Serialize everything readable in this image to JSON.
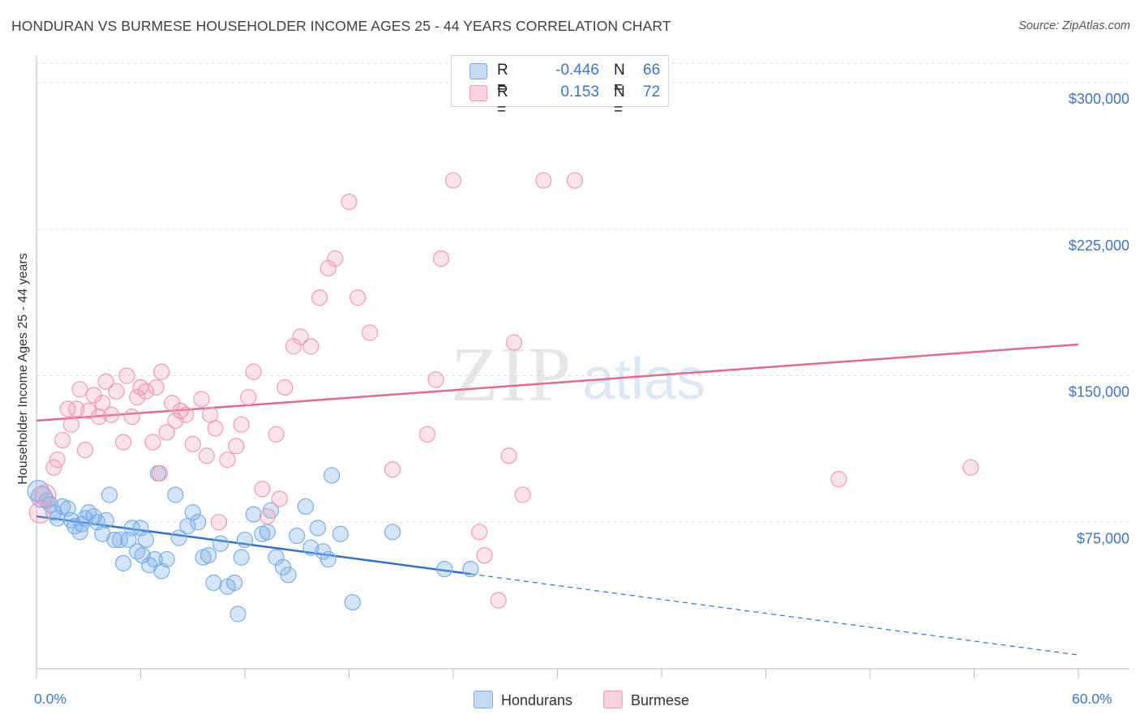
{
  "title": "HONDURAN VS BURMESE HOUSEHOLDER INCOME AGES 25 - 44 YEARS CORRELATION CHART",
  "source": "Source: ZipAtlas.com",
  "watermark": {
    "zip": "ZIP",
    "atlas": "atlas"
  },
  "legend": {
    "rows": [
      {
        "r_label": "R =",
        "r_value": "-0.446",
        "n_label": "N =",
        "n_value": "66",
        "color": "#7aaee8"
      },
      {
        "r_label": "R =",
        "r_value": "0.153",
        "n_label": "N =",
        "n_value": "72",
        "color": "#f29ab5"
      }
    ]
  },
  "bottom_legend": {
    "hondurans": "Hondurans",
    "burmese": "Burmese"
  },
  "x_axis": {
    "min_label": "0.0%",
    "max_label": "60.0%"
  },
  "chart_data": {
    "type": "scatter",
    "title": "HONDURAN VS BURMESE HOUSEHOLDER INCOME AGES 25 - 44 YEARS CORRELATION CHART",
    "xlabel": "",
    "ylabel": "Householder Income Ages 25 - 44 years",
    "xlim": [
      0,
      60
    ],
    "ylim": [
      0,
      310000
    ],
    "y_ticks": [
      {
        "value": 75000,
        "label": "$75,000"
      },
      {
        "value": 150000,
        "label": "$150,000"
      },
      {
        "value": 225000,
        "label": "$225,000"
      },
      {
        "value": 300000,
        "label": "$300,000"
      }
    ],
    "grid": true,
    "series": [
      {
        "name": "Hondurans",
        "color": "#7aaee8",
        "line_color": "#2e72d0",
        "trend": {
          "x0": 0,
          "y0": 78000,
          "x1": 25,
          "y1": 48500,
          "dashed_to_x": 60,
          "dashed_to_y": 7000
        },
        "points": [
          [
            0.1,
            91000
          ],
          [
            0.3,
            88000
          ],
          [
            0.6,
            86000
          ],
          [
            0.8,
            84000
          ],
          [
            1.0,
            80000
          ],
          [
            1.2,
            77000
          ],
          [
            1.5,
            83000
          ],
          [
            2.0,
            76000
          ],
          [
            2.2,
            73000
          ],
          [
            2.5,
            70000
          ],
          [
            2.8,
            77000
          ],
          [
            3.0,
            80000
          ],
          [
            3.3,
            78000
          ],
          [
            3.5,
            75000
          ],
          [
            3.8,
            69000
          ],
          [
            4.0,
            76000
          ],
          [
            4.2,
            89000
          ],
          [
            4.5,
            66000
          ],
          [
            4.8,
            66000
          ],
          [
            5.0,
            54000
          ],
          [
            5.3,
            66000
          ],
          [
            5.5,
            72000
          ],
          [
            5.8,
            60000
          ],
          [
            6.0,
            72000
          ],
          [
            6.3,
            66000
          ],
          [
            6.5,
            53000
          ],
          [
            6.8,
            56000
          ],
          [
            7.2,
            50000
          ],
          [
            7.5,
            56000
          ],
          [
            7.0,
            100000
          ],
          [
            8.0,
            89000
          ],
          [
            8.2,
            67000
          ],
          [
            8.7,
            73000
          ],
          [
            9.0,
            80000
          ],
          [
            9.3,
            75000
          ],
          [
            9.6,
            57000
          ],
          [
            9.9,
            58000
          ],
          [
            10.2,
            44000
          ],
          [
            10.6,
            64000
          ],
          [
            11.0,
            42000
          ],
          [
            11.4,
            44000
          ],
          [
            11.6,
            28000
          ],
          [
            11.8,
            57000
          ],
          [
            12.5,
            79000
          ],
          [
            13.0,
            69000
          ],
          [
            13.3,
            70000
          ],
          [
            13.5,
            81000
          ],
          [
            13.8,
            57000
          ],
          [
            14.2,
            52000
          ],
          [
            14.5,
            48000
          ],
          [
            15.0,
            68000
          ],
          [
            15.5,
            83000
          ],
          [
            15.8,
            62000
          ],
          [
            16.2,
            72000
          ],
          [
            16.5,
            60000
          ],
          [
            16.8,
            56000
          ],
          [
            17.0,
            99000
          ],
          [
            17.5,
            69000
          ],
          [
            18.2,
            34000
          ],
          [
            20.5,
            70000
          ],
          [
            23.5,
            51000
          ],
          [
            25.0,
            51000
          ],
          [
            1.8,
            82000
          ],
          [
            2.6,
            74000
          ],
          [
            12.0,
            66000
          ],
          [
            6.1,
            58000
          ]
        ]
      },
      {
        "name": "Burmese",
        "color": "#f29ab5",
        "line_color": "#e06a93",
        "trend": {
          "x0": 0,
          "y0": 127000,
          "x1": 60,
          "y1": 166000
        },
        "points": [
          [
            0.2,
            80000
          ],
          [
            0.5,
            89000
          ],
          [
            1.0,
            103000
          ],
          [
            1.2,
            107000
          ],
          [
            1.5,
            117000
          ],
          [
            1.8,
            133000
          ],
          [
            2.0,
            125000
          ],
          [
            2.3,
            133000
          ],
          [
            2.5,
            143000
          ],
          [
            2.8,
            112000
          ],
          [
            3.0,
            132000
          ],
          [
            3.3,
            140000
          ],
          [
            3.6,
            129000
          ],
          [
            3.8,
            136000
          ],
          [
            4.0,
            147000
          ],
          [
            4.3,
            130000
          ],
          [
            4.6,
            142000
          ],
          [
            5.0,
            116000
          ],
          [
            5.2,
            150000
          ],
          [
            5.5,
            129000
          ],
          [
            5.8,
            139000
          ],
          [
            6.0,
            144000
          ],
          [
            6.3,
            142000
          ],
          [
            6.7,
            116000
          ],
          [
            6.9,
            144000
          ],
          [
            7.2,
            152000
          ],
          [
            7.5,
            121000
          ],
          [
            7.8,
            136000
          ],
          [
            8.0,
            127000
          ],
          [
            8.3,
            132000
          ],
          [
            8.6,
            130000
          ],
          [
            9.0,
            115000
          ],
          [
            9.5,
            138000
          ],
          [
            9.8,
            109000
          ],
          [
            10.0,
            130000
          ],
          [
            10.3,
            123000
          ],
          [
            10.5,
            75000
          ],
          [
            11.0,
            107000
          ],
          [
            11.5,
            114000
          ],
          [
            11.8,
            125000
          ],
          [
            12.2,
            139000
          ],
          [
            12.5,
            152000
          ],
          [
            13.0,
            92000
          ],
          [
            13.3,
            78000
          ],
          [
            13.8,
            120000
          ],
          [
            14.0,
            87000
          ],
          [
            14.3,
            144000
          ],
          [
            14.8,
            165000
          ],
          [
            15.2,
            170000
          ],
          [
            15.8,
            165000
          ],
          [
            16.3,
            190000
          ],
          [
            16.8,
            205000
          ],
          [
            17.2,
            210000
          ],
          [
            18.0,
            239000
          ],
          [
            18.5,
            190000
          ],
          [
            19.2,
            172000
          ],
          [
            20.5,
            102000
          ],
          [
            22.5,
            120000
          ],
          [
            23.0,
            148000
          ],
          [
            23.3,
            210000
          ],
          [
            24.0,
            250000
          ],
          [
            25.5,
            70000
          ],
          [
            25.8,
            58000
          ],
          [
            26.6,
            35000
          ],
          [
            27.2,
            109000
          ],
          [
            27.5,
            167000
          ],
          [
            28.0,
            89000
          ],
          [
            29.2,
            250000
          ],
          [
            31.0,
            250000
          ],
          [
            46.2,
            97000
          ],
          [
            53.8,
            103000
          ],
          [
            7.1,
            100000
          ]
        ]
      }
    ]
  }
}
